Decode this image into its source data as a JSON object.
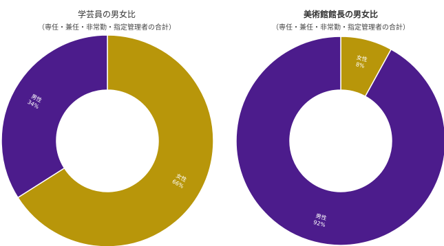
{
  "chart_data": [
    {
      "type": "pie",
      "title": "学芸員の男女比",
      "subtitle": "（専任・兼任・非常勤・指定管理者の合計）",
      "slices": [
        {
          "name": "女性",
          "value": 66,
          "label": "66%",
          "color": "#b8960a"
        },
        {
          "name": "男性",
          "value": 34,
          "label": "34%",
          "color": "#4c1c8c"
        }
      ]
    },
    {
      "type": "pie",
      "title": "美術館館長の男女比",
      "subtitle": "（専任・兼任・非常勤・指定管理者の合計）",
      "slices": [
        {
          "name": "女性",
          "value": 8,
          "label": "8%",
          "color": "#b8960a"
        },
        {
          "name": "男性",
          "value": 92,
          "label": "92%",
          "color": "#4c1c8c"
        }
      ]
    }
  ]
}
